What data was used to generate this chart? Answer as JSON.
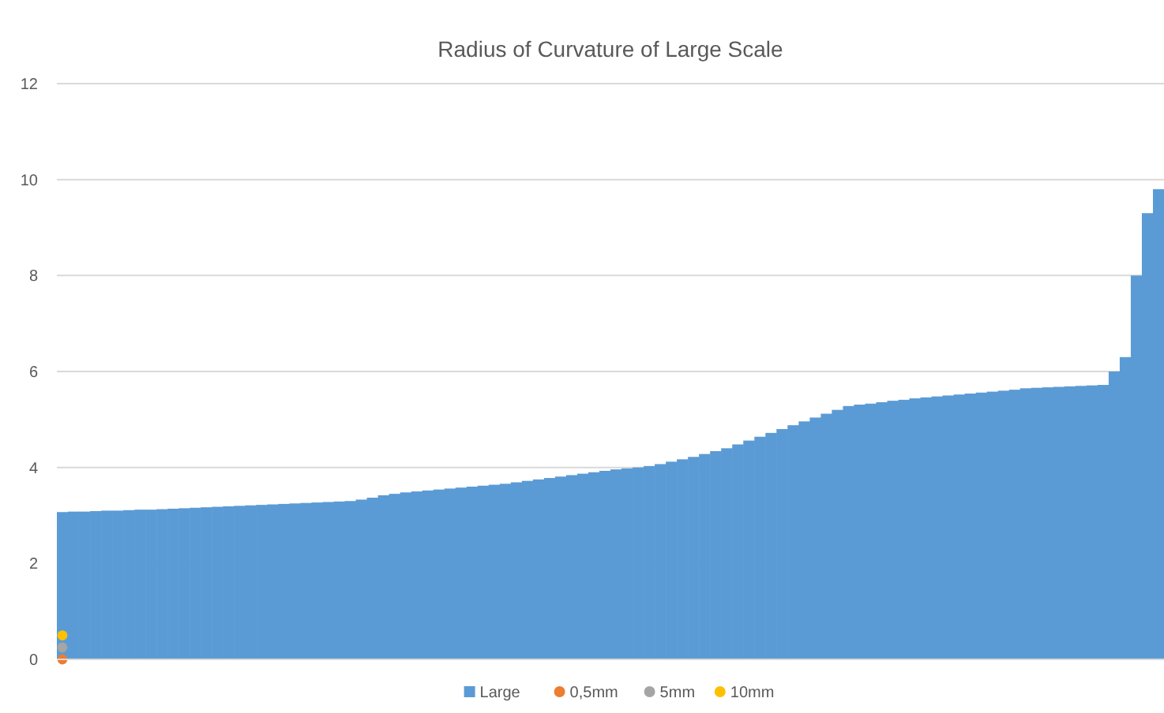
{
  "chart_data": {
    "type": "bar",
    "title": "Radius of Curvature of Large Scale",
    "categories": [
      null,
      null,
      null,
      null,
      null,
      null,
      null,
      null,
      null,
      null,
      null,
      null,
      null,
      null,
      null,
      null,
      null,
      null,
      null,
      null,
      null,
      null,
      null,
      null,
      null,
      null,
      null,
      null,
      null,
      null,
      null,
      null,
      null,
      null,
      null,
      null,
      null,
      null,
      null,
      null,
      null,
      null,
      null,
      null,
      null,
      null,
      null,
      null,
      null,
      null,
      null,
      null,
      null,
      null,
      null,
      null,
      null,
      null,
      null,
      null,
      null,
      null,
      null,
      null,
      null,
      null,
      null,
      null,
      null,
      null,
      null,
      null,
      null,
      null,
      null,
      null,
      null,
      null,
      null,
      null,
      null,
      null,
      null,
      null,
      null,
      null,
      null,
      null,
      null,
      null,
      null,
      null,
      null,
      null,
      null,
      null,
      null,
      null,
      null,
      null
    ],
    "series": [
      {
        "name": "Large",
        "color": "#5b9bd5",
        "values": [
          3.07,
          3.08,
          3.08,
          3.09,
          3.1,
          3.1,
          3.11,
          3.12,
          3.12,
          3.13,
          3.14,
          3.15,
          3.16,
          3.17,
          3.18,
          3.19,
          3.2,
          3.21,
          3.22,
          3.23,
          3.24,
          3.25,
          3.26,
          3.27,
          3.28,
          3.29,
          3.3,
          3.33,
          3.37,
          3.42,
          3.45,
          3.48,
          3.5,
          3.52,
          3.54,
          3.56,
          3.58,
          3.6,
          3.62,
          3.64,
          3.66,
          3.69,
          3.72,
          3.75,
          3.78,
          3.81,
          3.84,
          3.87,
          3.9,
          3.93,
          3.96,
          3.98,
          4.0,
          4.03,
          4.07,
          4.12,
          4.17,
          4.22,
          4.28,
          4.34,
          4.4,
          4.48,
          4.56,
          4.64,
          4.72,
          4.8,
          4.88,
          4.96,
          5.04,
          5.12,
          5.2,
          5.28,
          5.31,
          5.33,
          5.36,
          5.39,
          5.41,
          5.44,
          5.46,
          5.48,
          5.5,
          5.52,
          5.54,
          5.56,
          5.58,
          5.6,
          5.62,
          5.65,
          5.66,
          5.67,
          5.68,
          5.69,
          5.7,
          5.71,
          5.72,
          6.0,
          6.3,
          8.0,
          9.3,
          9.8
        ]
      },
      {
        "name": "0,5mm",
        "type": "scatter",
        "color": "#ed7d31",
        "values": [
          0,
          null,
          null,
          null,
          null,
          null,
          null,
          null,
          null,
          null,
          null,
          null,
          null,
          null,
          null,
          null,
          null,
          null,
          null,
          null,
          null,
          null,
          null,
          null,
          null,
          null,
          null,
          null,
          null,
          null,
          null,
          null,
          null,
          null,
          null,
          null,
          null,
          null,
          null,
          null,
          null,
          null,
          null,
          null,
          null,
          null,
          null,
          null,
          null,
          null,
          null,
          null,
          null,
          null,
          null,
          null,
          null,
          null,
          null,
          null,
          null,
          null,
          null,
          null,
          null,
          null,
          null,
          null,
          null,
          null,
          null,
          null,
          null,
          null,
          null,
          null,
          null,
          null,
          null,
          null,
          null,
          null,
          null,
          null,
          null,
          null,
          null,
          null,
          null,
          null,
          null,
          null,
          null,
          null,
          null,
          null,
          null,
          null,
          null,
          null
        ]
      },
      {
        "name": "5mm",
        "type": "scatter",
        "color": "#a5a5a5",
        "values": [
          0.25,
          null,
          null,
          null,
          null,
          null,
          null,
          null,
          null,
          null,
          null,
          null,
          null,
          null,
          null,
          null,
          null,
          null,
          null,
          null,
          null,
          null,
          null,
          null,
          null,
          null,
          null,
          null,
          null,
          null,
          null,
          null,
          null,
          null,
          null,
          null,
          null,
          null,
          null,
          null,
          null,
          null,
          null,
          null,
          null,
          null,
          null,
          null,
          null,
          null,
          null,
          null,
          null,
          null,
          null,
          null,
          null,
          null,
          null,
          null,
          null,
          null,
          null,
          null,
          null,
          null,
          null,
          null,
          null,
          null,
          null,
          null,
          null,
          null,
          null,
          null,
          null,
          null,
          null,
          null,
          null,
          null,
          null,
          null,
          null,
          null,
          null,
          null,
          null,
          null,
          null,
          null,
          null,
          null,
          null,
          null,
          null,
          null,
          null,
          null
        ]
      },
      {
        "name": "10mm",
        "type": "scatter",
        "color": "#ffc000",
        "values": [
          0.5,
          null,
          null,
          null,
          null,
          null,
          null,
          null,
          null,
          null,
          null,
          null,
          null,
          null,
          null,
          null,
          null,
          null,
          null,
          null,
          null,
          null,
          null,
          null,
          null,
          null,
          null,
          null,
          null,
          null,
          null,
          null,
          null,
          null,
          null,
          null,
          null,
          null,
          null,
          null,
          null,
          null,
          null,
          null,
          null,
          null,
          null,
          null,
          null,
          null,
          null,
          null,
          null,
          null,
          null,
          null,
          null,
          null,
          null,
          null,
          null,
          null,
          null,
          null,
          null,
          null,
          null,
          null,
          null,
          null,
          null,
          null,
          null,
          null,
          null,
          null,
          null,
          null,
          null,
          null,
          null,
          null,
          null,
          null,
          null,
          null,
          null,
          null,
          null,
          null,
          null,
          null,
          null,
          null,
          null,
          null,
          null,
          null,
          null,
          null
        ]
      }
    ],
    "ylim": [
      0,
      12
    ],
    "yticks": [
      0,
      2,
      4,
      6,
      8,
      10,
      12
    ],
    "grid": "y",
    "legend": "bottom",
    "marker": "circle"
  }
}
